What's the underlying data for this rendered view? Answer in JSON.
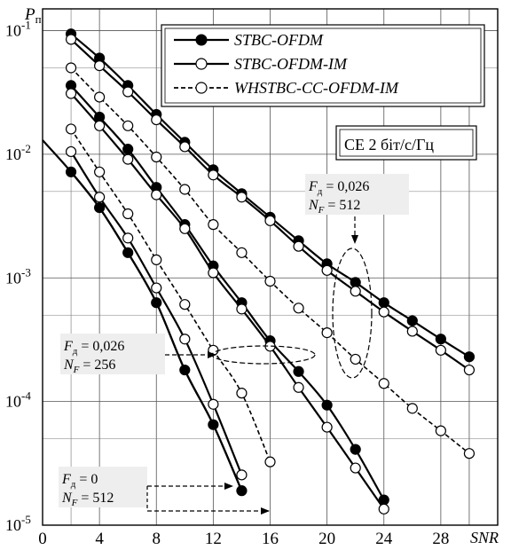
{
  "chart_data": {
    "type": "line",
    "ylabel_main": "P",
    "ylabel_sub": "п",
    "xlabel": "SNR",
    "xlim": [
      0,
      32
    ],
    "ylim": [
      1e-05,
      0.15
    ],
    "y_scale": "log",
    "grid": true,
    "x_ticks": [
      0,
      4,
      8,
      12,
      16,
      20,
      24,
      28
    ],
    "y_ticks": [
      {
        "value": 0.1,
        "mantissa": "10",
        "exp": "-1"
      },
      {
        "value": 0.01,
        "mantissa": "10",
        "exp": "-2"
      },
      {
        "value": 0.001,
        "mantissa": "10",
        "exp": "-3"
      },
      {
        "value": 0.0001,
        "mantissa": "10",
        "exp": "-4"
      },
      {
        "value": 1e-05,
        "mantissa": "10",
        "exp": "-5"
      }
    ],
    "legend": {
      "position": "top-right",
      "entries": [
        {
          "label": "STBC-OFDM",
          "style": "filled"
        },
        {
          "label": "STBC-OFDM-IM",
          "style": "hollow"
        },
        {
          "label": "WHSTBC-CC-OFDM-IM",
          "style": "dashed"
        }
      ]
    },
    "series": [
      {
        "style": "filled",
        "points": [
          [
            2,
            0.094
          ],
          [
            4,
            0.06
          ],
          [
            6,
            0.036
          ],
          [
            8,
            0.021
          ],
          [
            10,
            0.0125
          ],
          [
            12,
            0.0075
          ],
          [
            14,
            0.0048
          ],
          [
            16,
            0.0031
          ],
          [
            18,
            0.002
          ],
          [
            20,
            0.0013
          ],
          [
            22,
            0.00092
          ],
          [
            24,
            0.00063
          ],
          [
            26,
            0.00045
          ],
          [
            28,
            0.00032
          ],
          [
            30,
            0.00023
          ]
        ]
      },
      {
        "style": "hollow",
        "points": [
          [
            2,
            0.085
          ],
          [
            4,
            0.052
          ],
          [
            6,
            0.032
          ],
          [
            8,
            0.019
          ],
          [
            10,
            0.0115
          ],
          [
            12,
            0.0068
          ],
          [
            14,
            0.0045
          ],
          [
            16,
            0.0029
          ],
          [
            18,
            0.0018
          ],
          [
            20,
            0.00115
          ],
          [
            22,
            0.00078
          ],
          [
            24,
            0.00053
          ],
          [
            26,
            0.00037
          ],
          [
            28,
            0.00026
          ],
          [
            30,
            0.00018
          ]
        ]
      },
      {
        "style": "dashed",
        "points": [
          [
            2,
            0.05
          ],
          [
            4,
            0.029
          ],
          [
            6,
            0.017
          ],
          [
            8,
            0.0095
          ],
          [
            10,
            0.0052
          ],
          [
            12,
            0.0027
          ],
          [
            14,
            0.0016
          ],
          [
            16,
            0.00094
          ],
          [
            18,
            0.00057
          ],
          [
            20,
            0.00036
          ],
          [
            22,
            0.00022
          ],
          [
            24,
            0.00014
          ],
          [
            26,
            8.8e-05
          ],
          [
            28,
            5.8e-05
          ],
          [
            30,
            3.8e-05
          ]
        ]
      },
      {
        "style": "filled",
        "points": [
          [
            2,
            0.036
          ],
          [
            4,
            0.02
          ],
          [
            6,
            0.011
          ],
          [
            8,
            0.0054
          ],
          [
            10,
            0.0027
          ],
          [
            12,
            0.00125
          ],
          [
            14,
            0.00063
          ],
          [
            16,
            0.00031
          ],
          [
            18,
            0.000175
          ],
          [
            20,
            9.35e-05
          ],
          [
            22,
            4.1e-05
          ],
          [
            24,
            1.6e-05
          ]
        ]
      },
      {
        "style": "hollow",
        "points": [
          [
            2,
            0.031
          ],
          [
            4,
            0.017
          ],
          [
            6,
            0.0091
          ],
          [
            8,
            0.0047
          ],
          [
            10,
            0.0025
          ],
          [
            12,
            0.0011
          ],
          [
            14,
            0.00056
          ],
          [
            16,
            0.00028
          ],
          [
            18,
            0.00013
          ],
          [
            20,
            6.2e-05
          ],
          [
            22,
            2.9e-05
          ],
          [
            24,
            1.35e-05
          ]
        ]
      },
      {
        "style": "dashed",
        "points": [
          [
            2,
            0.016
          ],
          [
            4,
            0.0072
          ],
          [
            6,
            0.0033
          ],
          [
            8,
            0.0014
          ],
          [
            10,
            0.00061
          ],
          [
            12,
            0.00026
          ],
          [
            14,
            0.000117
          ],
          [
            16,
            3.25e-05
          ]
        ]
      },
      {
        "style": "filled",
        "points": [
          [
            2,
            0.0072
          ],
          [
            4,
            0.0037
          ],
          [
            6,
            0.0016
          ],
          [
            8,
            0.00063
          ],
          [
            10,
            0.00018
          ],
          [
            12,
            6.5e-05
          ],
          [
            14,
            1.9e-05
          ]
        ]
      },
      {
        "style": "hollow",
        "points": [
          [
            2,
            0.0105
          ],
          [
            4,
            0.0045
          ],
          [
            6,
            0.0021
          ],
          [
            8,
            0.00083
          ],
          [
            10,
            0.00032
          ],
          [
            12,
            9.5e-05
          ],
          [
            14,
            2.55e-05
          ]
        ]
      },
      {
        "style": "filled",
        "points": [
          [
            0,
            0.013
          ],
          [
            2,
            0.0072
          ],
          [
            4,
            0.0037
          ],
          [
            6,
            0.0016
          ],
          [
            8,
            0.00063
          ],
          [
            10,
            0.00018
          ],
          [
            12,
            6.5e-05
          ],
          [
            14,
            1.9e-05
          ]
        ],
        "line_only": true
      }
    ],
    "annotations": {
      "ce_box": "СЕ 2 біт/с/Гц",
      "ann1": {
        "f_label": "F",
        "f_sub": "д",
        "f_value": " = 0,026",
        "n_label": "N",
        "n_sub": "F",
        "n_value": " = 512"
      },
      "ann2": {
        "f_label": "F",
        "f_sub": "д",
        "f_value": " = 0,026",
        "n_label": "N",
        "n_sub": "F",
        "n_value": " = 256"
      },
      "ann3": {
        "f_label": "F",
        "f_sub": "д",
        "f_value": " = 0",
        "n_label": "N",
        "n_sub": "F",
        "n_value": " = 512"
      }
    }
  }
}
